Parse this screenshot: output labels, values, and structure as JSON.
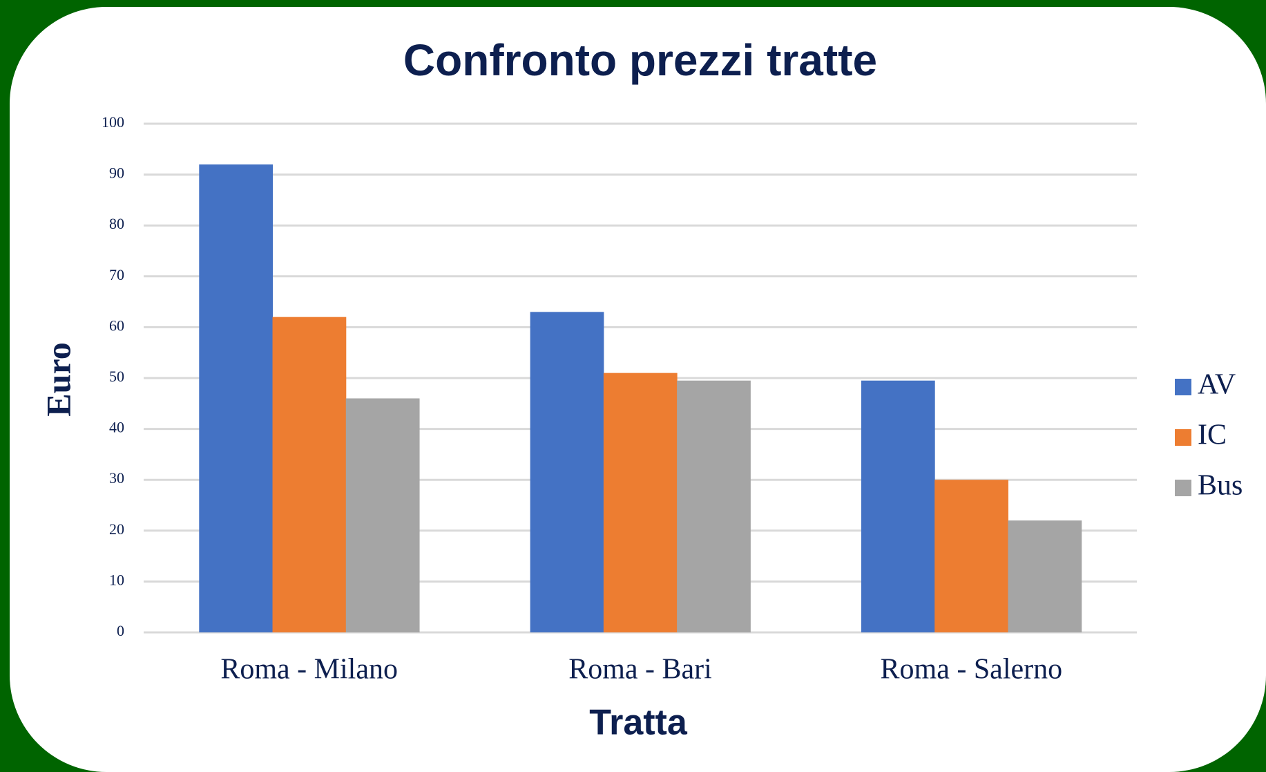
{
  "chart_data": {
    "type": "bar",
    "title": "Confronto prezzi tratte",
    "x_label": "Tratta",
    "y_label": "Euro",
    "categories": [
      "Roma - Milano",
      "Roma - Bari",
      "Roma - Salerno"
    ],
    "series": [
      {
        "name": "AV",
        "color": "#4472c4",
        "values": [
          92,
          63,
          49.5
        ]
      },
      {
        "name": "IC",
        "color": "#ed7d31",
        "values": [
          62,
          51,
          30
        ]
      },
      {
        "name": "Bus",
        "color": "#a5a5a5",
        "values": [
          46,
          49.5,
          22
        ]
      }
    ],
    "ylim": [
      0,
      100
    ],
    "yticks": [
      0,
      10,
      20,
      30,
      40,
      50,
      60,
      70,
      80,
      90,
      100
    ],
    "grid": true,
    "legend": "right"
  }
}
